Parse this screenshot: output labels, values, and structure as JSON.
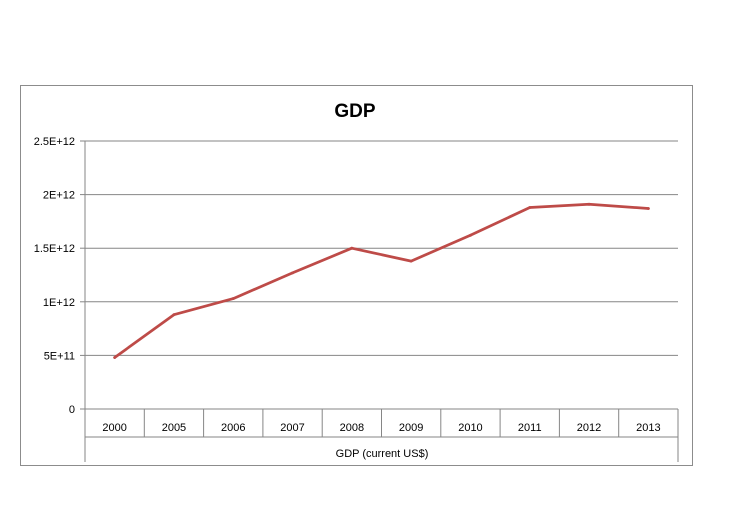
{
  "chart_data": {
    "type": "line",
    "title": "GDP",
    "xlabel": "GDP (current US$)",
    "ylabel": "",
    "categories": [
      "2000",
      "2005",
      "2006",
      "2007",
      "2008",
      "2009",
      "2010",
      "2011",
      "2012",
      "2013"
    ],
    "series": [
      {
        "name": "",
        "values": [
          480000000000.0,
          880000000000.0,
          1030000000000.0,
          1270000000000.0,
          1500000000000.0,
          1380000000000.0,
          1620000000000.0,
          1880000000000.0,
          1910000000000.0,
          1870000000000.0
        ]
      }
    ],
    "ylim": [
      0,
      2500000000000.0
    ],
    "yticks": [
      {
        "value": 0,
        "label": "0"
      },
      {
        "value": 500000000000.0,
        "label": "5E+11"
      },
      {
        "value": 1000000000000.0,
        "label": "1E+12"
      },
      {
        "value": 1500000000000.0,
        "label": "1.5E+12"
      },
      {
        "value": 2000000000000.0,
        "label": "2E+12"
      },
      {
        "value": 2500000000000.0,
        "label": "2.5E+12"
      }
    ],
    "grid": true,
    "legend": "none",
    "colors": {
      "line": "#BE4B48",
      "grid": "#868686",
      "axis": "#868686",
      "text": "#000000"
    }
  }
}
